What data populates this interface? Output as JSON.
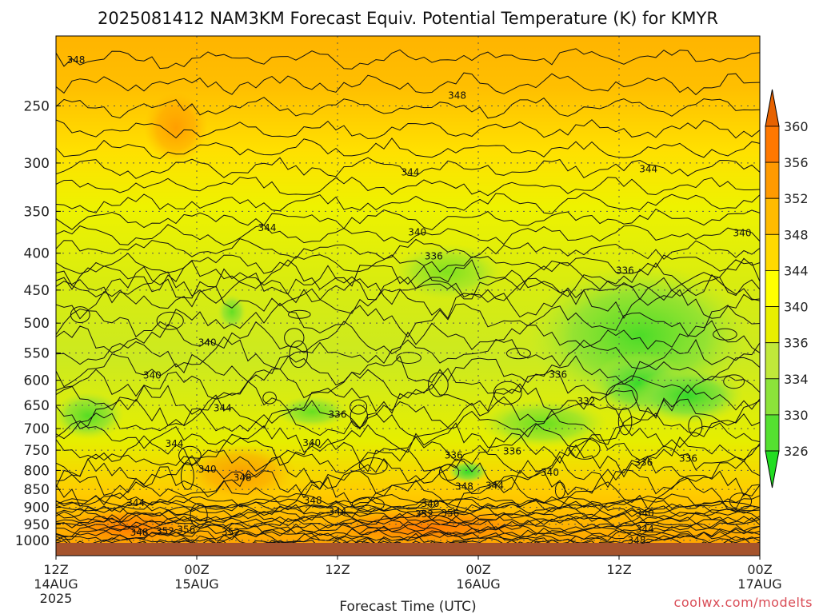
{
  "chart_data": {
    "type": "heatmap",
    "title": "2025081412 NAM3KM Forecast Equiv. Potential Temperature (K) for KMYR",
    "xlabel": "Forecast Time (UTC)",
    "ylabel": "",
    "y_scale": "log",
    "y_reversed": true,
    "x_ticks": [
      {
        "hour": 0,
        "label": "12Z",
        "date": "14AUG",
        "year": "2025"
      },
      {
        "hour": 12,
        "label": "00Z",
        "date": "15AUG",
        "year": ""
      },
      {
        "hour": 24,
        "label": "12Z",
        "date": "",
        "year": ""
      },
      {
        "hour": 36,
        "label": "00Z",
        "date": "16AUG",
        "year": ""
      },
      {
        "hour": 48,
        "label": "12Z",
        "date": "",
        "year": ""
      },
      {
        "hour": 60,
        "label": "00Z",
        "date": "17AUG",
        "year": ""
      }
    ],
    "y_ticks": [
      250,
      300,
      350,
      400,
      450,
      500,
      550,
      600,
      650,
      700,
      750,
      800,
      850,
      900,
      950,
      1000
    ],
    "colorbar": {
      "labels": [
        "326",
        "330",
        "334",
        "336",
        "340",
        "344",
        "348",
        "352",
        "356",
        "360"
      ],
      "colors": [
        "#22dd22",
        "#55e030",
        "#8ce33a",
        "#c0e83a",
        "#e8ef00",
        "#ffff00",
        "#ffd900",
        "#ffbb00",
        "#ff9a00",
        "#ff7800",
        "#e76200"
      ]
    },
    "contour_labels": [
      {
        "text": "348",
        "hour": 1.7,
        "p": 216
      },
      {
        "text": "348",
        "hour": 34.2,
        "p": 242
      },
      {
        "text": "344",
        "hour": 30.2,
        "p": 309
      },
      {
        "text": "344",
        "hour": 50.5,
        "p": 306
      },
      {
        "text": "344",
        "hour": 18,
        "p": 369
      },
      {
        "text": "340",
        "hour": 30.8,
        "p": 374
      },
      {
        "text": "340",
        "hour": 58.5,
        "p": 375
      },
      {
        "text": "336",
        "hour": 32.2,
        "p": 404
      },
      {
        "text": "336",
        "hour": 48.5,
        "p": 423
      },
      {
        "text": "340",
        "hour": 12.9,
        "p": 532
      },
      {
        "text": "340",
        "hour": 8.2,
        "p": 591
      },
      {
        "text": "336",
        "hour": 42.8,
        "p": 589
      },
      {
        "text": "332",
        "hour": 45.2,
        "p": 642
      },
      {
        "text": "344",
        "hour": 14.2,
        "p": 656
      },
      {
        "text": "336",
        "hour": 24,
        "p": 669
      },
      {
        "text": "344",
        "hour": 10.1,
        "p": 735
      },
      {
        "text": "340",
        "hour": 21.8,
        "p": 733
      },
      {
        "text": "336",
        "hour": 33.9,
        "p": 762
      },
      {
        "text": "336",
        "hour": 38.9,
        "p": 753
      },
      {
        "text": "336",
        "hour": 50.1,
        "p": 780
      },
      {
        "text": "336",
        "hour": 53.9,
        "p": 770
      },
      {
        "text": "340",
        "hour": 12.9,
        "p": 797
      },
      {
        "text": "348",
        "hour": 15.9,
        "p": 819
      },
      {
        "text": "340",
        "hour": 42.1,
        "p": 805
      },
      {
        "text": "344",
        "hour": 37.4,
        "p": 840
      },
      {
        "text": "348",
        "hour": 34.8,
        "p": 842
      },
      {
        "text": "344",
        "hour": 6.8,
        "p": 887
      },
      {
        "text": "348",
        "hour": 21.9,
        "p": 880
      },
      {
        "text": "344",
        "hour": 24,
        "p": 913
      },
      {
        "text": "340",
        "hour": 31.9,
        "p": 890
      },
      {
        "text": "352",
        "hour": 31.4,
        "p": 919
      },
      {
        "text": "356",
        "hour": 33.6,
        "p": 917
      },
      {
        "text": "340",
        "hour": 50.2,
        "p": 917
      },
      {
        "text": "344",
        "hour": 50.2,
        "p": 965
      },
      {
        "text": "348",
        "hour": 7.1,
        "p": 975
      },
      {
        "text": "352",
        "hour": 9.3,
        "p": 971
      },
      {
        "text": "356",
        "hour": 11.1,
        "p": 966
      },
      {
        "text": "352",
        "hour": 14.9,
        "p": 974
      },
      {
        "text": "348",
        "hour": 49.5,
        "p": 1000
      }
    ]
  },
  "credit": "coolwx.com/modelts"
}
